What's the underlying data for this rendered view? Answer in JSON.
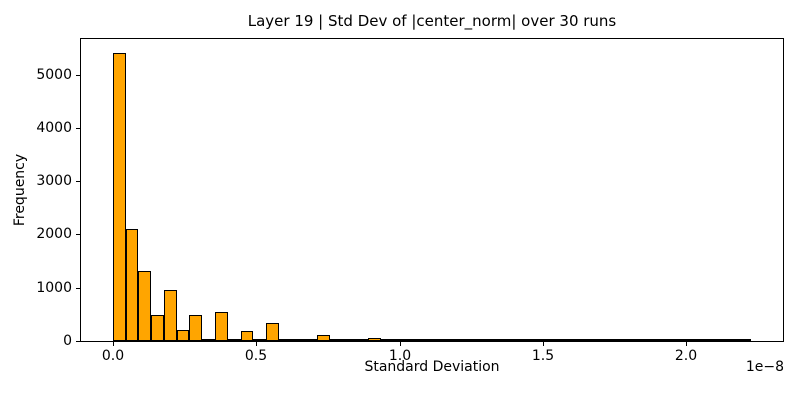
{
  "chart_data": {
    "type": "bar",
    "subtype": "histogram",
    "title": "Layer 19 | Std Dev of |center_norm| over 30 runs",
    "xlabel": "Standard Deviation",
    "ylabel": "Frequency",
    "x_offset_label": "1e−8",
    "x_scale_factor": 1e-08,
    "x_tick_values": [
      0.0,
      0.5,
      1.0,
      1.5,
      2.0
    ],
    "x_tick_labels": [
      "0.0",
      "0.5",
      "1.0",
      "1.5",
      "2.0"
    ],
    "y_tick_values": [
      0,
      1000,
      2000,
      3000,
      4000,
      5000
    ],
    "y_tick_labels": [
      "0",
      "1000",
      "2000",
      "3000",
      "4000",
      "5000"
    ],
    "xlim": [
      -0.1113,
      2.3368
    ],
    "ylim": [
      0,
      5670
    ],
    "grid": false,
    "legend": null,
    "bin_start": 0.0,
    "bin_width": 0.0445,
    "bin_range_end": 2.2255,
    "frequencies": [
      5400,
      2110,
      1320,
      480,
      960,
      200,
      490,
      45,
      540,
      45,
      190,
      20,
      340,
      20,
      8,
      0,
      110,
      15,
      0,
      0,
      55,
      0,
      0,
      0,
      0,
      35,
      0,
      0,
      0,
      0,
      0,
      0,
      0,
      0,
      0,
      0,
      0,
      0,
      0,
      0,
      0,
      0,
      0,
      0,
      0,
      0,
      0,
      0,
      0,
      2
    ],
    "bar_color": "#FFA500",
    "bar_edge_color": "#000000",
    "axis_color": "#000000",
    "background_color": "#ffffff"
  }
}
